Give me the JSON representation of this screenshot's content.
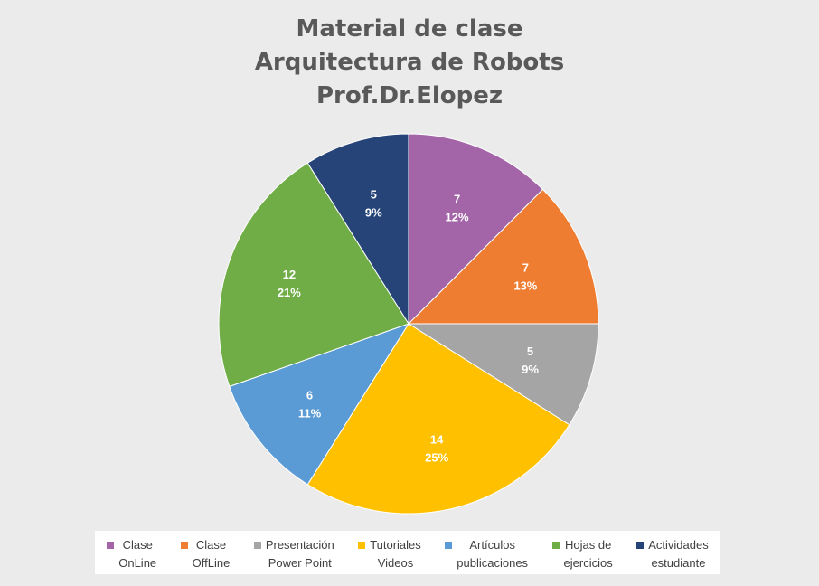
{
  "chart_data": {
    "type": "pie",
    "title": [
      "Material de clase",
      "Arquitectura de Robots",
      "Prof.Dr.Elopez"
    ],
    "slices": [
      {
        "name": "Clase\nOnLine",
        "value": 7,
        "percent": "12%",
        "color": "#a365a8"
      },
      {
        "name": "Clase\nOffLine",
        "value": 7,
        "percent": "13%",
        "color": "#ef7d31"
      },
      {
        "name": "Presentación\nPower Point",
        "value": 5,
        "percent": "9%",
        "color": "#a5a5a5"
      },
      {
        "name": "Tutoriales\nVideos",
        "value": 14,
        "percent": "25%",
        "color": "#ffc000"
      },
      {
        "name": "Artículos\npublicaciones",
        "value": 6,
        "percent": "11%",
        "color": "#5b9bd5"
      },
      {
        "name": "Hojas de\nejercicios",
        "value": 12,
        "percent": "21%",
        "color": "#70ad47"
      },
      {
        "name": "Actividades\nestudiante",
        "value": 5,
        "percent": "9%",
        "color": "#264478"
      }
    ],
    "legend_position": "bottom"
  }
}
